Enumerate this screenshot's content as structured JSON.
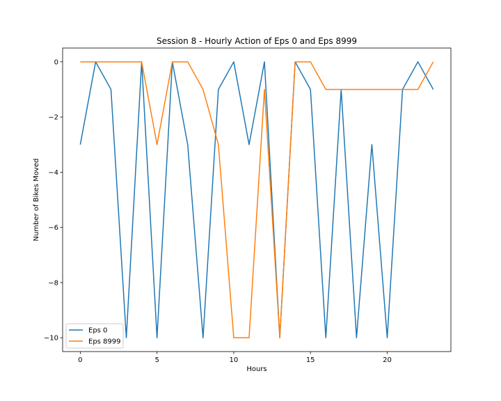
{
  "chart_data": {
    "type": "line",
    "title": "Session 8 - Hourly Action of Eps 0 and Eps 8999",
    "xlabel": "Hours",
    "ylabel": "Number of Bikes Moved",
    "xlim": [
      -1.15,
      24.15
    ],
    "ylim": [
      -10.5,
      0.5
    ],
    "xticks": [
      0,
      5,
      10,
      15,
      20
    ],
    "yticks": [
      0,
      -2,
      -4,
      -6,
      -8,
      -10
    ],
    "grid": false,
    "legend_position": "lower-left",
    "x": [
      0,
      1,
      2,
      3,
      4,
      5,
      6,
      7,
      8,
      9,
      10,
      11,
      12,
      13,
      14,
      15,
      16,
      17,
      18,
      19,
      20,
      21,
      22,
      23
    ],
    "series": [
      {
        "name": "Eps 0",
        "color": "#1f77b4",
        "values": [
          -3,
          0,
          -1,
          -10,
          0,
          -10,
          0,
          -3,
          -10,
          -1,
          0,
          -3,
          0,
          -10,
          0,
          -1,
          -10,
          -1,
          -10,
          -3,
          -10,
          -1,
          0,
          -1
        ]
      },
      {
        "name": "Eps 8999",
        "color": "#ff7f0e",
        "values": [
          0,
          0,
          0,
          0,
          0,
          -3,
          0,
          0,
          -1,
          -3,
          -10,
          -10,
          -1,
          -10,
          0,
          0,
          -1,
          -1,
          -1,
          -1,
          -1,
          -1,
          -1,
          0
        ]
      }
    ]
  }
}
